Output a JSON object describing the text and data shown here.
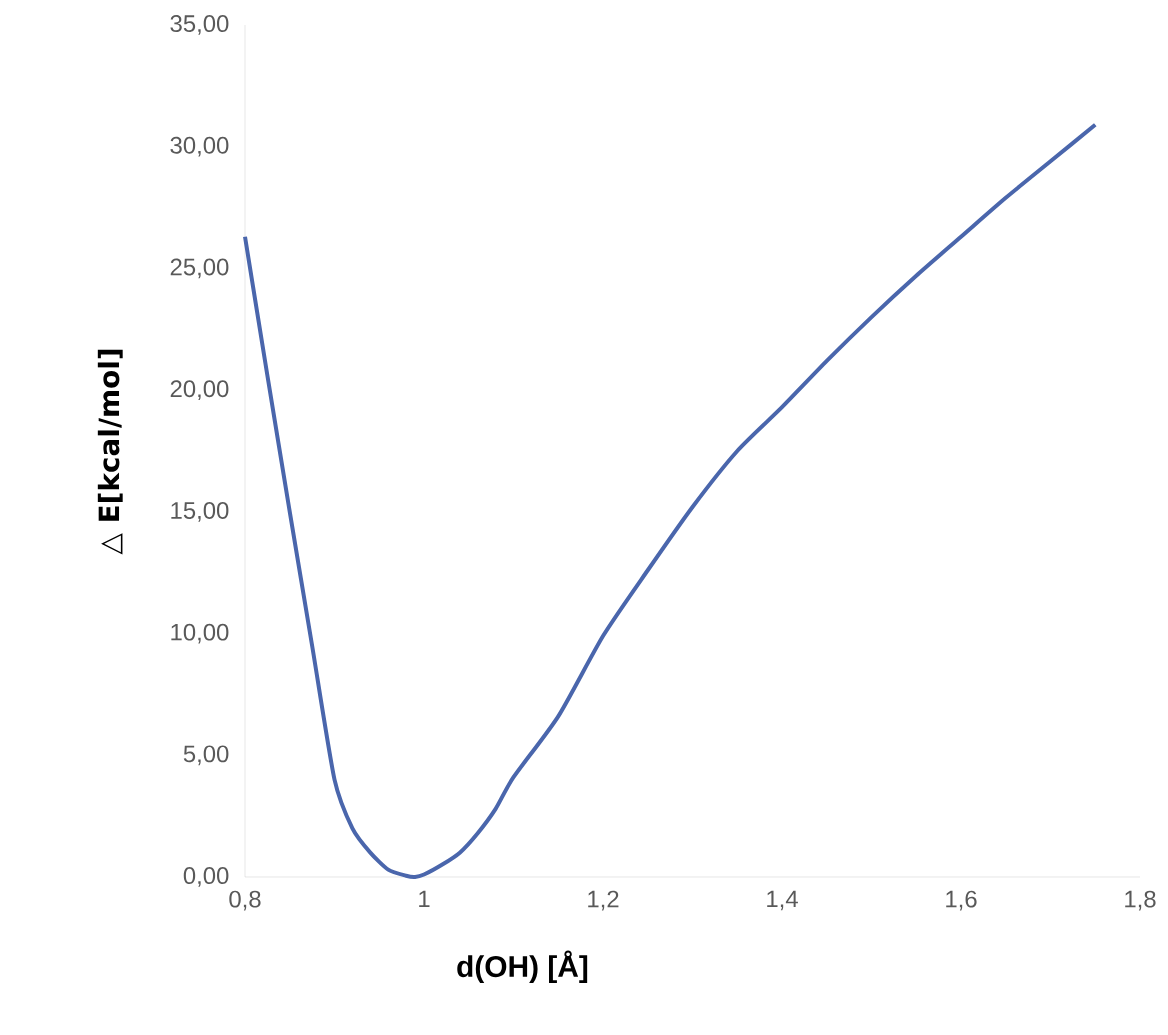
{
  "chart_data": {
    "type": "line",
    "xlabel": "d(OH) [Å]",
    "ylabel": "△ E[kcal/mol]",
    "xlim": [
      0.8,
      1.8
    ],
    "ylim": [
      0,
      35
    ],
    "xticks": [
      {
        "value": 0.8,
        "label": "0,8"
      },
      1,
      {
        "value": 1.2,
        "label": "1,2"
      },
      {
        "value": 1.4,
        "label": "1,4"
      },
      {
        "value": 1.6,
        "label": "1,6"
      },
      {
        "value": 1.8,
        "label": "1,8"
      }
    ],
    "yticks": [
      {
        "value": 0,
        "label": "0,00"
      },
      {
        "value": 5,
        "label": "5,00"
      },
      {
        "value": 10,
        "label": "10,00"
      },
      {
        "value": 15,
        "label": "15,00"
      },
      {
        "value": 20,
        "label": "20,00"
      },
      {
        "value": 25,
        "label": "25,00"
      },
      {
        "value": 30,
        "label": "30,00"
      },
      {
        "value": 35,
        "label": "35,00"
      }
    ],
    "x": [
      0.8,
      0.825,
      0.85,
      0.875,
      0.9,
      0.92,
      0.94,
      0.96,
      0.98,
      0.99,
      1.0,
      1.02,
      1.04,
      1.06,
      1.08,
      1.1,
      1.15,
      1.2,
      1.25,
      1.3,
      1.35,
      1.4,
      1.45,
      1.5,
      1.55,
      1.6,
      1.65,
      1.7,
      1.75
    ],
    "series": [
      {
        "color": "#4a66ac",
        "values": [
          26.3,
          20.6,
          15.0,
          9.5,
          4.0,
          2.0,
          1.0,
          0.3,
          0.05,
          0.0,
          0.1,
          0.5,
          1.0,
          1.8,
          2.8,
          4.1,
          6.6,
          9.9,
          12.6,
          15.2,
          17.5,
          19.3,
          21.2,
          23.0,
          24.7,
          26.3,
          27.9,
          29.4,
          30.9
        ]
      }
    ],
    "grid": false,
    "marker": "none",
    "line_style": "solid"
  }
}
